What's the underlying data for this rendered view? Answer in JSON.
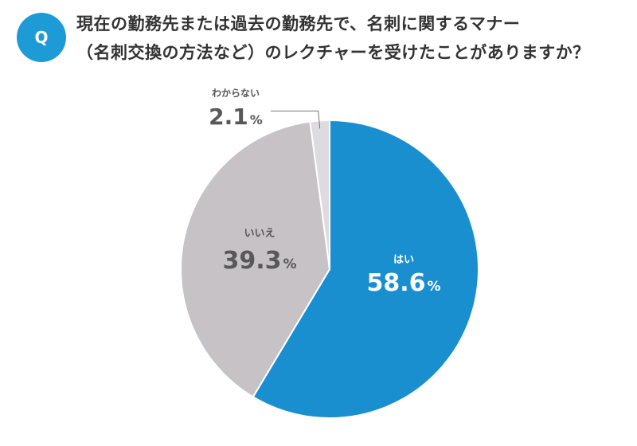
{
  "question": {
    "badge": "Q",
    "line1": "現在の勤務先または過去の勤務先で、名刺に関するマナー",
    "line2": "（名刺交換の方法など）のレクチャーを受けたことがありますか？"
  },
  "chart_data": {
    "type": "pie",
    "start_angle": "12 o'clock",
    "direction": "clockwise",
    "slices": [
      {
        "label": "はい",
        "value": 58.6,
        "value_text": "58.6",
        "unit": "%",
        "color": "#1a8fd0",
        "label_color": "#ffffff"
      },
      {
        "label": "いいえ",
        "value": 39.3,
        "value_text": "39.3",
        "unit": "%",
        "color": "#c6c2c6",
        "label_color": "#595757"
      },
      {
        "label": "わからない",
        "value": 2.1,
        "value_text": "2.1",
        "unit": "%",
        "color": "#dddbdf",
        "label_color": "#595757"
      }
    ]
  }
}
